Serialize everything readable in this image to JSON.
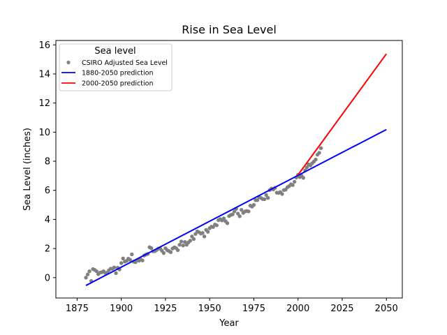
{
  "chart_data": {
    "type": "scatter",
    "title": "Rise in Sea Level",
    "xlabel": "Year",
    "ylabel": "Sea Level (inches)",
    "xlim": [
      1863,
      2059
    ],
    "ylim": [
      -1.4,
      16.3
    ],
    "xticks": [
      1875,
      1900,
      1925,
      1950,
      1975,
      2000,
      2025,
      2050
    ],
    "yticks": [
      0,
      2,
      4,
      6,
      8,
      10,
      12,
      14,
      16
    ],
    "grid": false,
    "legend": {
      "title": "Sea level",
      "placement": "top-left",
      "entries": [
        "CSIRO Adjusted Sea Level",
        "1880-2050 prediction",
        "2000-2050 prediction"
      ]
    },
    "series": [
      {
        "name": "CSIRO Adjusted Sea Level",
        "kind": "scatter",
        "color": "#808080",
        "x": [
          1880,
          1881,
          1882,
          1883,
          1884,
          1885,
          1886,
          1887,
          1888,
          1889,
          1890,
          1891,
          1892,
          1893,
          1894,
          1895,
          1896,
          1897,
          1898,
          1899,
          1900,
          1901,
          1902,
          1903,
          1904,
          1905,
          1906,
          1907,
          1908,
          1909,
          1910,
          1911,
          1912,
          1913,
          1914,
          1915,
          1916,
          1917,
          1918,
          1919,
          1920,
          1921,
          1922,
          1923,
          1924,
          1925,
          1926,
          1927,
          1928,
          1929,
          1930,
          1931,
          1932,
          1933,
          1934,
          1935,
          1936,
          1937,
          1938,
          1939,
          1940,
          1941,
          1942,
          1943,
          1944,
          1945,
          1946,
          1947,
          1948,
          1949,
          1950,
          1951,
          1952,
          1953,
          1954,
          1955,
          1956,
          1957,
          1958,
          1959,
          1960,
          1961,
          1962,
          1963,
          1964,
          1965,
          1966,
          1967,
          1968,
          1969,
          1970,
          1971,
          1972,
          1973,
          1974,
          1975,
          1976,
          1977,
          1978,
          1979,
          1980,
          1981,
          1982,
          1983,
          1984,
          1985,
          1986,
          1987,
          1988,
          1989,
          1990,
          1991,
          1992,
          1993,
          1994,
          1995,
          1996,
          1997,
          1998,
          1999,
          2000,
          2001,
          2002,
          2003,
          2004,
          2005,
          2006,
          2007,
          2008,
          2009,
          2010,
          2011,
          2012,
          2013
        ],
        "y": [
          0.0,
          0.22,
          0.44,
          -0.23,
          0.59,
          0.53,
          0.44,
          0.24,
          0.35,
          0.37,
          0.44,
          0.31,
          0.35,
          0.5,
          0.61,
          0.61,
          0.7,
          0.31,
          0.68,
          0.56,
          1.0,
          1.32,
          1.1,
          1.15,
          1.3,
          1.22,
          1.6,
          1.1,
          1.06,
          1.2,
          1.16,
          1.25,
          1.18,
          1.52,
          1.59,
          1.63,
          2.09,
          2.03,
          1.81,
          1.82,
          1.9,
          1.99,
          2.0,
          1.85,
          1.69,
          2.02,
          1.88,
          1.83,
          1.75,
          2.0,
          2.08,
          2.03,
          1.89,
          2.26,
          2.48,
          2.21,
          2.45,
          2.26,
          2.42,
          2.54,
          2.83,
          2.65,
          3.0,
          3.18,
          3.12,
          3.03,
          3.07,
          2.83,
          3.28,
          3.15,
          3.4,
          3.5,
          3.48,
          3.65,
          3.6,
          3.95,
          4.02,
          3.93,
          4.07,
          3.88,
          3.74,
          4.23,
          4.31,
          4.35,
          4.55,
          4.73,
          4.4,
          4.22,
          4.66,
          4.45,
          4.55,
          4.58,
          4.55,
          4.95,
          4.88,
          5.0,
          5.33,
          5.33,
          5.52,
          5.48,
          5.4,
          5.39,
          5.68,
          5.48,
          6.02,
          6.12,
          6.06,
          6.17,
          5.84,
          5.82,
          5.88,
          5.75,
          6.02,
          6.05,
          6.21,
          6.29,
          6.42,
          6.36,
          6.59,
          6.88,
          7.06,
          6.91,
          7.0,
          6.86,
          7.37,
          7.58,
          7.78,
          7.71,
          7.86,
          7.98,
          8.12,
          8.45,
          8.58,
          8.9
        ]
      },
      {
        "name": "1880-2050 prediction",
        "kind": "line",
        "color": "#0000ff",
        "x": [
          1880,
          2050
        ],
        "y": [
          -0.54,
          10.18
        ]
      },
      {
        "name": "2000-2050 prediction",
        "kind": "line",
        "color": "#ff0000",
        "x": [
          2000,
          2050
        ],
        "y": [
          7.06,
          15.38
        ]
      }
    ]
  }
}
